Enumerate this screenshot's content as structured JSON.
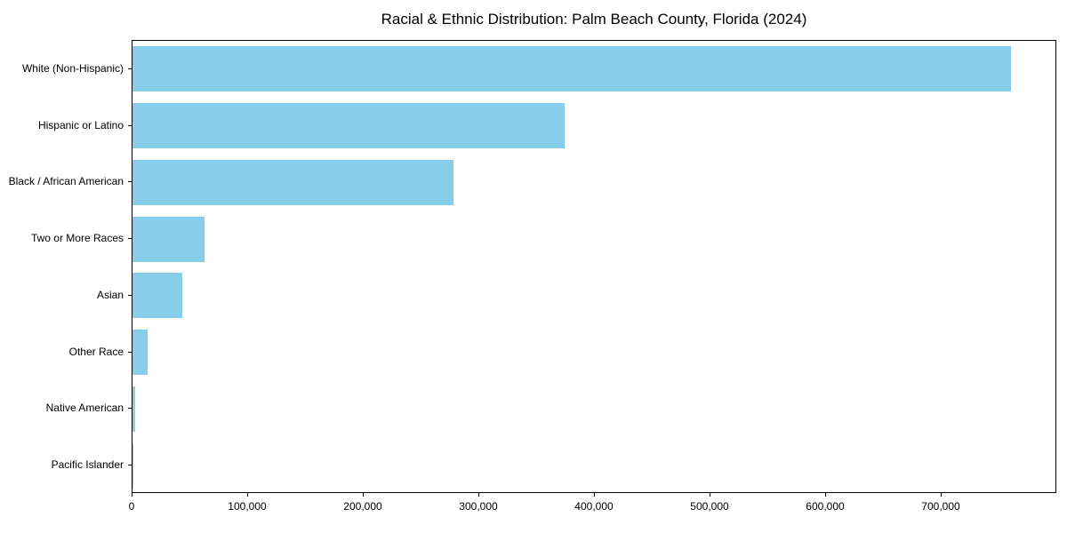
{
  "chart_data": {
    "type": "bar",
    "orientation": "horizontal",
    "title": "Racial & Ethnic Distribution: Palm Beach County, Florida (2024)",
    "xlabel": "",
    "ylabel": "",
    "categories": [
      "White (Non-Hispanic)",
      "Hispanic or Latino",
      "Black / African American",
      "Two or More Races",
      "Asian",
      "Other Race",
      "Native American",
      "Pacific Islander"
    ],
    "values": [
      760000,
      374000,
      278000,
      62000,
      43000,
      13000,
      2000,
      1000
    ],
    "xlim": [
      0,
      800000
    ],
    "x_ticks": [
      0,
      100000,
      200000,
      300000,
      400000,
      500000,
      600000,
      700000
    ],
    "x_tick_labels": [
      "0",
      "100,000",
      "200,000",
      "300,000",
      "400,000",
      "500,000",
      "600,000",
      "700,000"
    ],
    "bar_color": "#87CEEB",
    "grid": false,
    "legend": false
  }
}
